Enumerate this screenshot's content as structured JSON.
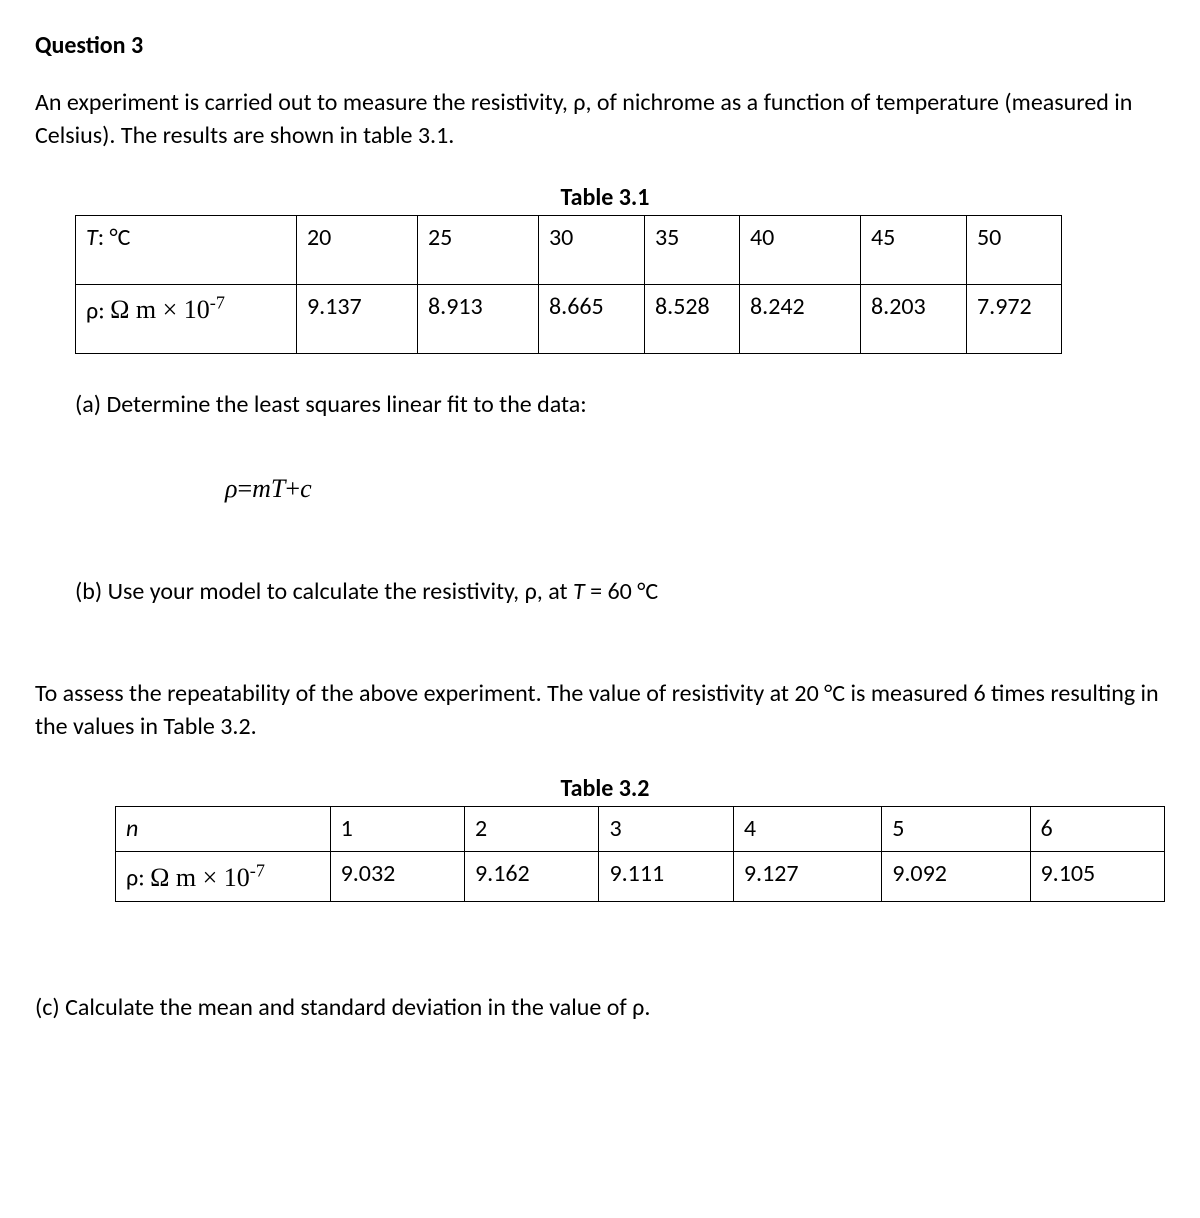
{
  "heading": "Question 3",
  "intro": "An experiment is carried out to measure the resistivity, ρ, of nichrome as a function of temperature (measured in Celsius). The results are shown in table 3.1.",
  "table1": {
    "caption": "Table 3.1",
    "row1_label_html": "<span class='italic'>T</span>: °C",
    "row1": [
      "20",
      "25",
      "30",
      "35",
      "40",
      "45",
      "50"
    ],
    "row2_label_html": "ρ: <span class='times-font'>Ω m × 10<span class='sup'>-7</span></span>",
    "row2": [
      "9.137",
      "8.913",
      "8.665",
      "8.528",
      "8.242",
      "8.203",
      "7.972"
    ]
  },
  "part_a": "(a)  Determine the least squares linear fit to the data:",
  "equation_html": "ρ<span class='roman'>=</span>mT<span class='roman'>+</span>c",
  "part_b_html": "(b)  Use your model to calculate the resistivity, ρ, at <span class='italic'>T</span> = 60 °C",
  "mid_para": "To assess the repeatability of the above experiment. The value of resistivity at 20 °C is measured 6 times resulting in the values in Table 3.2.",
  "table2": {
    "caption": "Table 3.2",
    "row1_label_html": "<span class='italic'>n</span>",
    "row1": [
      "1",
      "2",
      "3",
      "4",
      "5",
      "6"
    ],
    "row2_label_html": "ρ: <span class='times-font'>Ω m × 10<span class='sup'>-7</span></span>",
    "row2": [
      "9.032",
      "9.162",
      "9.111",
      "9.127",
      "9.092",
      "9.105"
    ]
  },
  "part_c": "(c) Calculate the mean and standard deviation in the value of ρ."
}
